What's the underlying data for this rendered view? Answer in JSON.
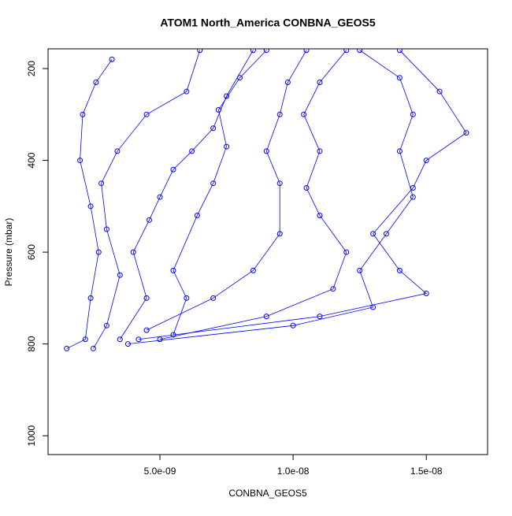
{
  "chart_data": {
    "type": "scatter",
    "title": "ATOM1 North_America CONBNA_GEOS5",
    "x_label": "CONBNA_GEOS5",
    "y_label": "Pressure (mbar)",
    "xlim": [
      8e-10,
      1.73e-08
    ],
    "ylim": [
      1041,
      157
    ],
    "xticks": [
      {
        "value": 5e-09,
        "label": "5.0e-09"
      },
      {
        "value": 1e-08,
        "label": "1.0e-08"
      },
      {
        "value": 1.5e-08,
        "label": "1.5e-08"
      }
    ],
    "yticks": [
      200,
      400,
      600,
      800,
      1000
    ],
    "color": "#0000ff",
    "series": [
      {
        "x": [
          1.5e-09,
          2.2e-09,
          2.4e-09,
          2.7e-09,
          2.4e-09,
          2e-09,
          2.1e-09,
          2.6e-09,
          3.2e-09
        ],
        "values": [
          810,
          790,
          700,
          600,
          500,
          400,
          300,
          230,
          180
        ]
      },
      {
        "x": [
          2.5e-09,
          3e-09,
          3.5e-09,
          3e-09,
          2.8e-09,
          3.4e-09,
          4.5e-09,
          6e-09,
          6.5e-09
        ],
        "values": [
          810,
          760,
          650,
          550,
          450,
          380,
          300,
          250,
          160
        ]
      },
      {
        "x": [
          3.5e-09,
          4.5e-09,
          4e-09,
          4.6e-09,
          5e-09,
          5.5e-09,
          6.2e-09,
          7e-09,
          7.5e-09,
          8.5e-09
        ],
        "values": [
          790,
          700,
          600,
          530,
          480,
          420,
          380,
          330,
          260,
          160
        ]
      },
      {
        "x": [
          5.5e-09,
          6e-09,
          5.5e-09,
          6.4e-09,
          7e-09,
          7.5e-09,
          7.2e-09,
          8e-09,
          9e-09
        ],
        "values": [
          780,
          700,
          640,
          520,
          450,
          370,
          290,
          220,
          160
        ]
      },
      {
        "x": [
          4.5e-09,
          7e-09,
          8.5e-09,
          9.5e-09,
          9.5e-09,
          9e-09,
          9.5e-09,
          9.8e-09,
          1.05e-08
        ],
        "values": [
          770,
          700,
          640,
          560,
          450,
          380,
          300,
          230,
          160
        ]
      },
      {
        "x": [
          5e-09,
          9e-09,
          1.15e-08,
          1.2e-08,
          1.1e-08,
          1.05e-08,
          1.1e-08,
          1.04e-08,
          1.1e-08,
          1.2e-08
        ],
        "values": [
          790,
          740,
          680,
          600,
          520,
          460,
          380,
          300,
          230,
          160
        ]
      },
      {
        "x": [
          3.8e-09,
          1e-08,
          1.3e-08,
          1.25e-08,
          1.35e-08,
          1.45e-08,
          1.4e-08,
          1.45e-08,
          1.4e-08,
          1.25e-08
        ],
        "values": [
          800,
          760,
          720,
          640,
          560,
          480,
          380,
          300,
          220,
          160
        ]
      },
      {
        "x": [
          4.2e-09,
          1.1e-08,
          1.5e-08,
          1.4e-08,
          1.3e-08,
          1.45e-08,
          1.5e-08,
          1.65e-08,
          1.55e-08,
          1.4e-08
        ],
        "values": [
          790,
          740,
          690,
          640,
          560,
          460,
          400,
          340,
          250,
          160
        ]
      }
    ]
  }
}
